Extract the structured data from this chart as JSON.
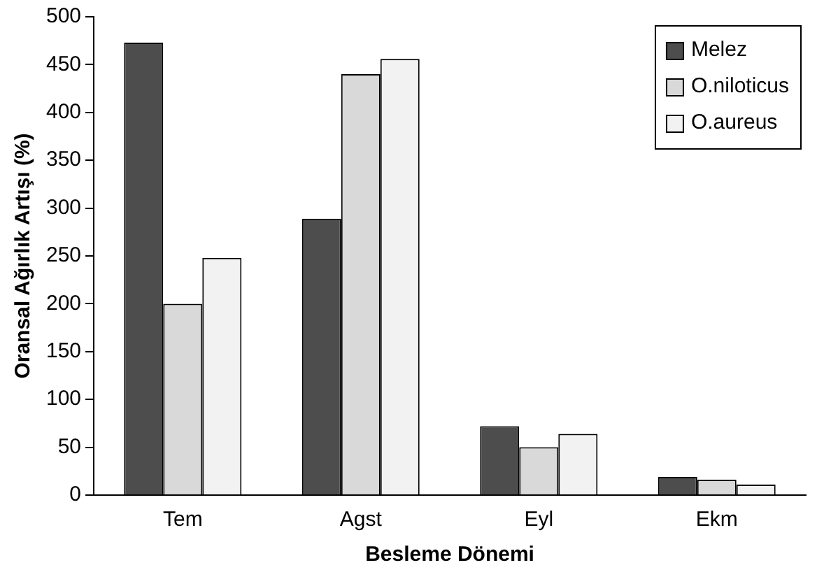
{
  "chart_data": {
    "type": "bar",
    "xlabel": "Besleme Dönemi",
    "ylabel": "Oransal Ağırlık Artışı (%)",
    "categories": [
      "Tem",
      "Agst",
      "Eyl",
      "Ekm"
    ],
    "series": [
      {
        "name": "Melez",
        "color": "#4d4d4d",
        "values": [
          473,
          289,
          72,
          19
        ]
      },
      {
        "name": "O.niloticus",
        "color": "#d9d9d9",
        "values": [
          200,
          440,
          50,
          16
        ]
      },
      {
        "name": "O.aureus",
        "color": "#f2f2f2",
        "values": [
          248,
          456,
          64,
          11
        ]
      }
    ],
    "ylim": [
      0,
      500
    ],
    "yticks": [
      0,
      50,
      100,
      150,
      200,
      250,
      300,
      350,
      400,
      450,
      500
    ],
    "grid": false,
    "legend": "top right"
  }
}
